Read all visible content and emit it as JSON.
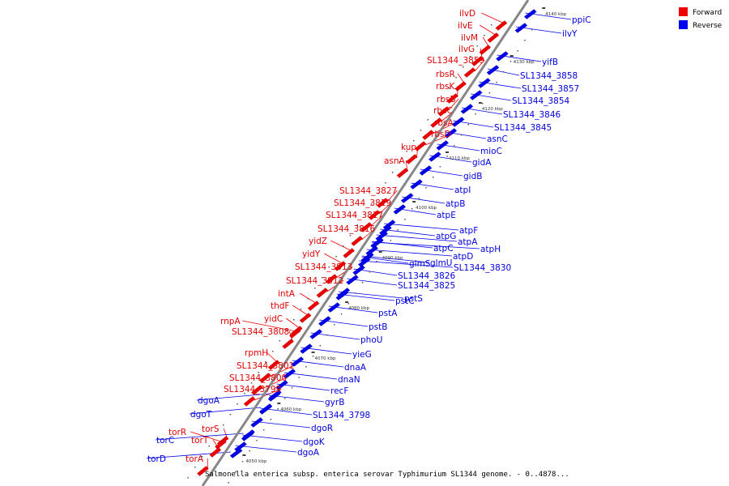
{
  "caption": "Salmonella enterica subsp. enterica serovar Typhimurium SL1344 genome. - 0..4878...",
  "legend": [
    {
      "label": "Forward",
      "color": "#ee0000"
    },
    {
      "label": "Reverse",
      "color": "#0000ee"
    }
  ],
  "colors": {
    "forward": "#ee0000",
    "reverse": "#0000ee",
    "backbone": "#888888"
  },
  "ticks": [
    "4050 kbp",
    "4060 kbp",
    "4070 kbp",
    "4080 kbp",
    "4090 kbp",
    "4100 kbp",
    "4110 kbp",
    "4120 kbp",
    "4130 kbp",
    "4140 kbp"
  ],
  "forward_genes": [
    "ilvD",
    "ilvE",
    "ilvM",
    "ilvG",
    "SL1344_3859",
    "rbsR",
    "rbsK",
    "rbsB",
    "rbsC",
    "rbsA",
    "rbsD",
    "kup",
    "asnA",
    "SL1344_3827",
    "SL1344_3819",
    "SL1344_3817",
    "SL1344_3816",
    "yidZ",
    "yidY",
    "SL1344_3813",
    "SL1344_3812",
    "intA",
    "thdF",
    "yidC",
    "rnpA",
    "SL1344_3808",
    "rpmH",
    "SL1344_3801",
    "SL1344_3800",
    "SL1344_3799",
    "torS",
    "torR",
    "torT",
    "torA"
  ],
  "reverse_genes": [
    "ppiC",
    "ilvY",
    "yifB",
    "SL1344_3858",
    "SL1344_3857",
    "SL1344_3854",
    "SL1344_3846",
    "SL1344_3845",
    "asnC",
    "mioC",
    "gidA",
    "gidB",
    "atpI",
    "atpB",
    "atpE",
    "atpF",
    "atpG",
    "atpA",
    "atpH",
    "atpC",
    "atpD",
    "glmS",
    "glmU",
    "SL1344_3830",
    "SL1344_3826",
    "SL1344_3825",
    "pstS",
    "pstC",
    "pstA",
    "pstB",
    "phoU",
    "yieG",
    "dnaA",
    "dnaN",
    "recF",
    "gyrB",
    "SL1344_3798",
    "dgoR",
    "dgoK",
    "dgoA",
    "dgoA",
    "dgoT",
    "torC",
    "torD"
  ]
}
